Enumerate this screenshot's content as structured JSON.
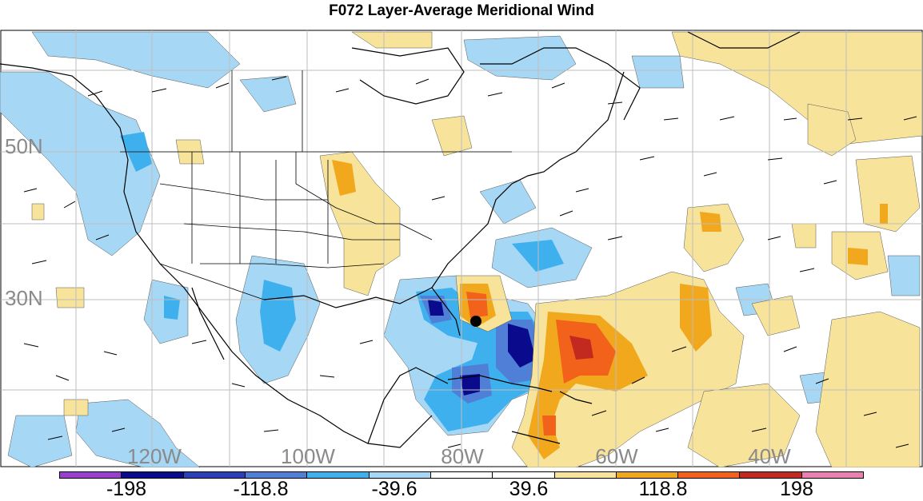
{
  "title": "F072 Layer-Average Meridional Wind",
  "lat_labels": [
    "50N",
    "30N"
  ],
  "lon_labels": [
    "120W",
    "100W",
    "80W",
    "60W",
    "40W"
  ],
  "colorbar": {
    "colors": [
      "#9b3fd1",
      "#0a0a8c",
      "#2a3fb8",
      "#4f7fd6",
      "#3fb0ee",
      "#a6d8f5",
      "#ffffff",
      "#ffffff",
      "#f7e39a",
      "#f2a81d",
      "#f2621a",
      "#c22a1f",
      "#ec7fb1"
    ],
    "labels": [
      "-198",
      "-118.8",
      "-39.6",
      "39.6",
      "118.8",
      "198"
    ]
  },
  "colors": {
    "positive_light": "#f7e39a",
    "positive_mid": "#f2a81d",
    "positive_high": "#f2621a",
    "positive_max": "#c22a1f",
    "negative_light": "#a6d8f5",
    "negative_mid": "#3fb0ee",
    "negative_high": "#4f7fd6",
    "negative_max": "#0a0a8c",
    "grid": "#bdbdbd",
    "coast": "#000000"
  }
}
